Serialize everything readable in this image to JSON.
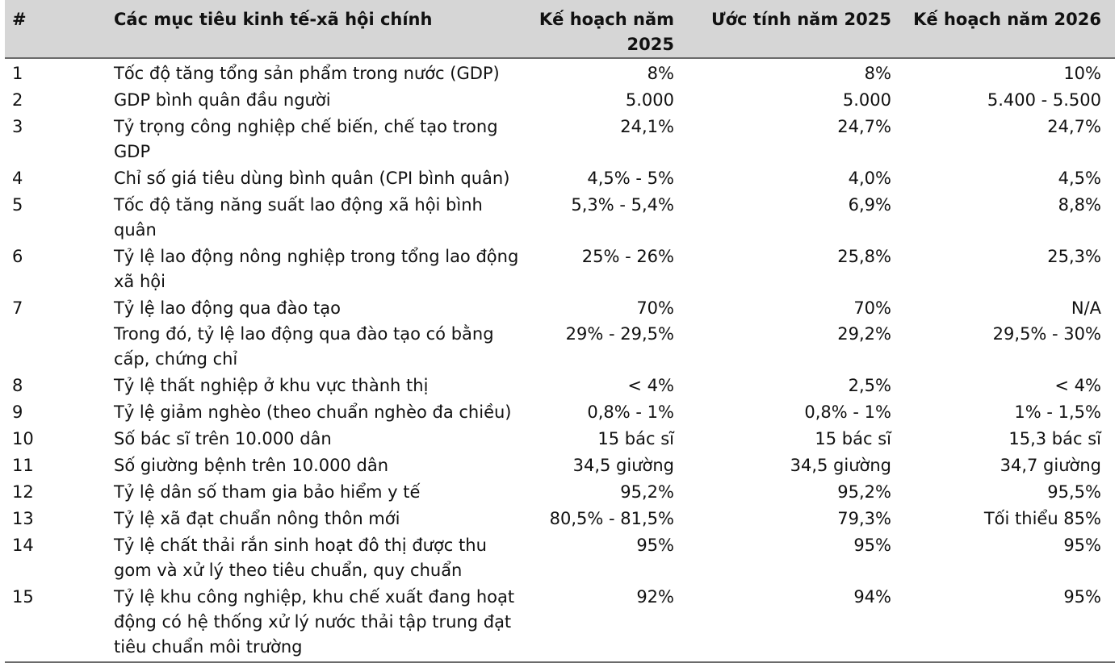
{
  "table": {
    "headers": {
      "num": "#",
      "name": "Các mục tiêu kinh tế-xã hội chính",
      "plan_2025": "Kế hoạch năm 2025",
      "estimate_2025": "Ước tính năm 2025",
      "plan_2026": "Kế hoạch năm 2026"
    },
    "rows": [
      {
        "num": "1",
        "name": "Tốc độ tăng tổng sản phẩm trong nước (GDP)",
        "plan_2025": "8%",
        "estimate_2025": "8%",
        "plan_2026": "10%"
      },
      {
        "num": "2",
        "name": "GDP bình quân đầu người",
        "plan_2025": "5.000",
        "estimate_2025": "5.000",
        "plan_2026": "5.400 - 5.500"
      },
      {
        "num": "3",
        "name": "Tỷ trọng công nghiệp chế biến, chế tạo trong GDP",
        "plan_2025": "24,1%",
        "estimate_2025": "24,7%",
        "plan_2026": "24,7%"
      },
      {
        "num": "4",
        "name": "Chỉ số giá tiêu dùng bình quân (CPI bình quân)",
        "plan_2025": "4,5% - 5%",
        "estimate_2025": "4,0%",
        "plan_2026": "4,5%"
      },
      {
        "num": "5",
        "name": "Tốc độ tăng năng suất lao động xã hội bình quân",
        "plan_2025": "5,3% - 5,4%",
        "estimate_2025": "6,9%",
        "plan_2026": "8,8%"
      },
      {
        "num": "6",
        "name": "Tỷ lệ lao động nông nghiệp trong tổng lao động xã hội",
        "plan_2025": "25% - 26%",
        "estimate_2025": "25,8%",
        "plan_2026": "25,3%"
      },
      {
        "num": "7",
        "name": "Tỷ lệ lao động qua đào tạo",
        "plan_2025": "70%",
        "estimate_2025": "70%",
        "plan_2026": "N/A"
      },
      {
        "num": "",
        "name": "Trong đó, tỷ lệ lao động qua đào tạo có bằng cấp, chứng chỉ",
        "plan_2025": "29% - 29,5%",
        "estimate_2025": "29,2%",
        "plan_2026": "29,5% - 30%"
      },
      {
        "num": "8",
        "name": "Tỷ lệ thất nghiệp ở khu vực thành thị",
        "plan_2025": "< 4%",
        "estimate_2025": "2,5%",
        "plan_2026": "< 4%"
      },
      {
        "num": "9",
        "name": "Tỷ lệ giảm nghèo (theo chuẩn nghèo đa chiều)",
        "plan_2025": "0,8% - 1%",
        "estimate_2025": "0,8% - 1%",
        "plan_2026": "1% - 1,5%"
      },
      {
        "num": "10",
        "name": "Số bác sĩ trên 10.000 dân",
        "plan_2025": "15 bác sĩ",
        "estimate_2025": "15 bác sĩ",
        "plan_2026": "15,3 bác sĩ"
      },
      {
        "num": "11",
        "name": "Số giường bệnh trên 10.000 dân",
        "plan_2025": "34,5 giường",
        "estimate_2025": "34,5 giường",
        "plan_2026": "34,7 giường"
      },
      {
        "num": "12",
        "name": "Tỷ lệ dân số tham gia bảo hiểm y tế",
        "plan_2025": "95,2%",
        "estimate_2025": "95,2%",
        "plan_2026": "95,5%"
      },
      {
        "num": "13",
        "name": "Tỷ lệ xã đạt chuẩn nông thôn mới",
        "plan_2025": "80,5% - 81,5%",
        "estimate_2025": "79,3%",
        "plan_2026": "Tối thiểu 85%"
      },
      {
        "num": "14",
        "name": "Tỷ lệ chất thải rắn sinh hoạt đô thị được thu gom và xử lý theo tiêu chuẩn, quy chuẩn",
        "plan_2025": "95%",
        "estimate_2025": "95%",
        "plan_2026": "95%"
      },
      {
        "num": "15",
        "name": "Tỷ lệ khu công nghiệp, khu chế xuất đang hoạt động có hệ thống xử lý nước thải tập trung đạt tiêu chuẩn môi trường",
        "plan_2025": "92%",
        "estimate_2025": "94%",
        "plan_2026": "95%"
      }
    ]
  }
}
